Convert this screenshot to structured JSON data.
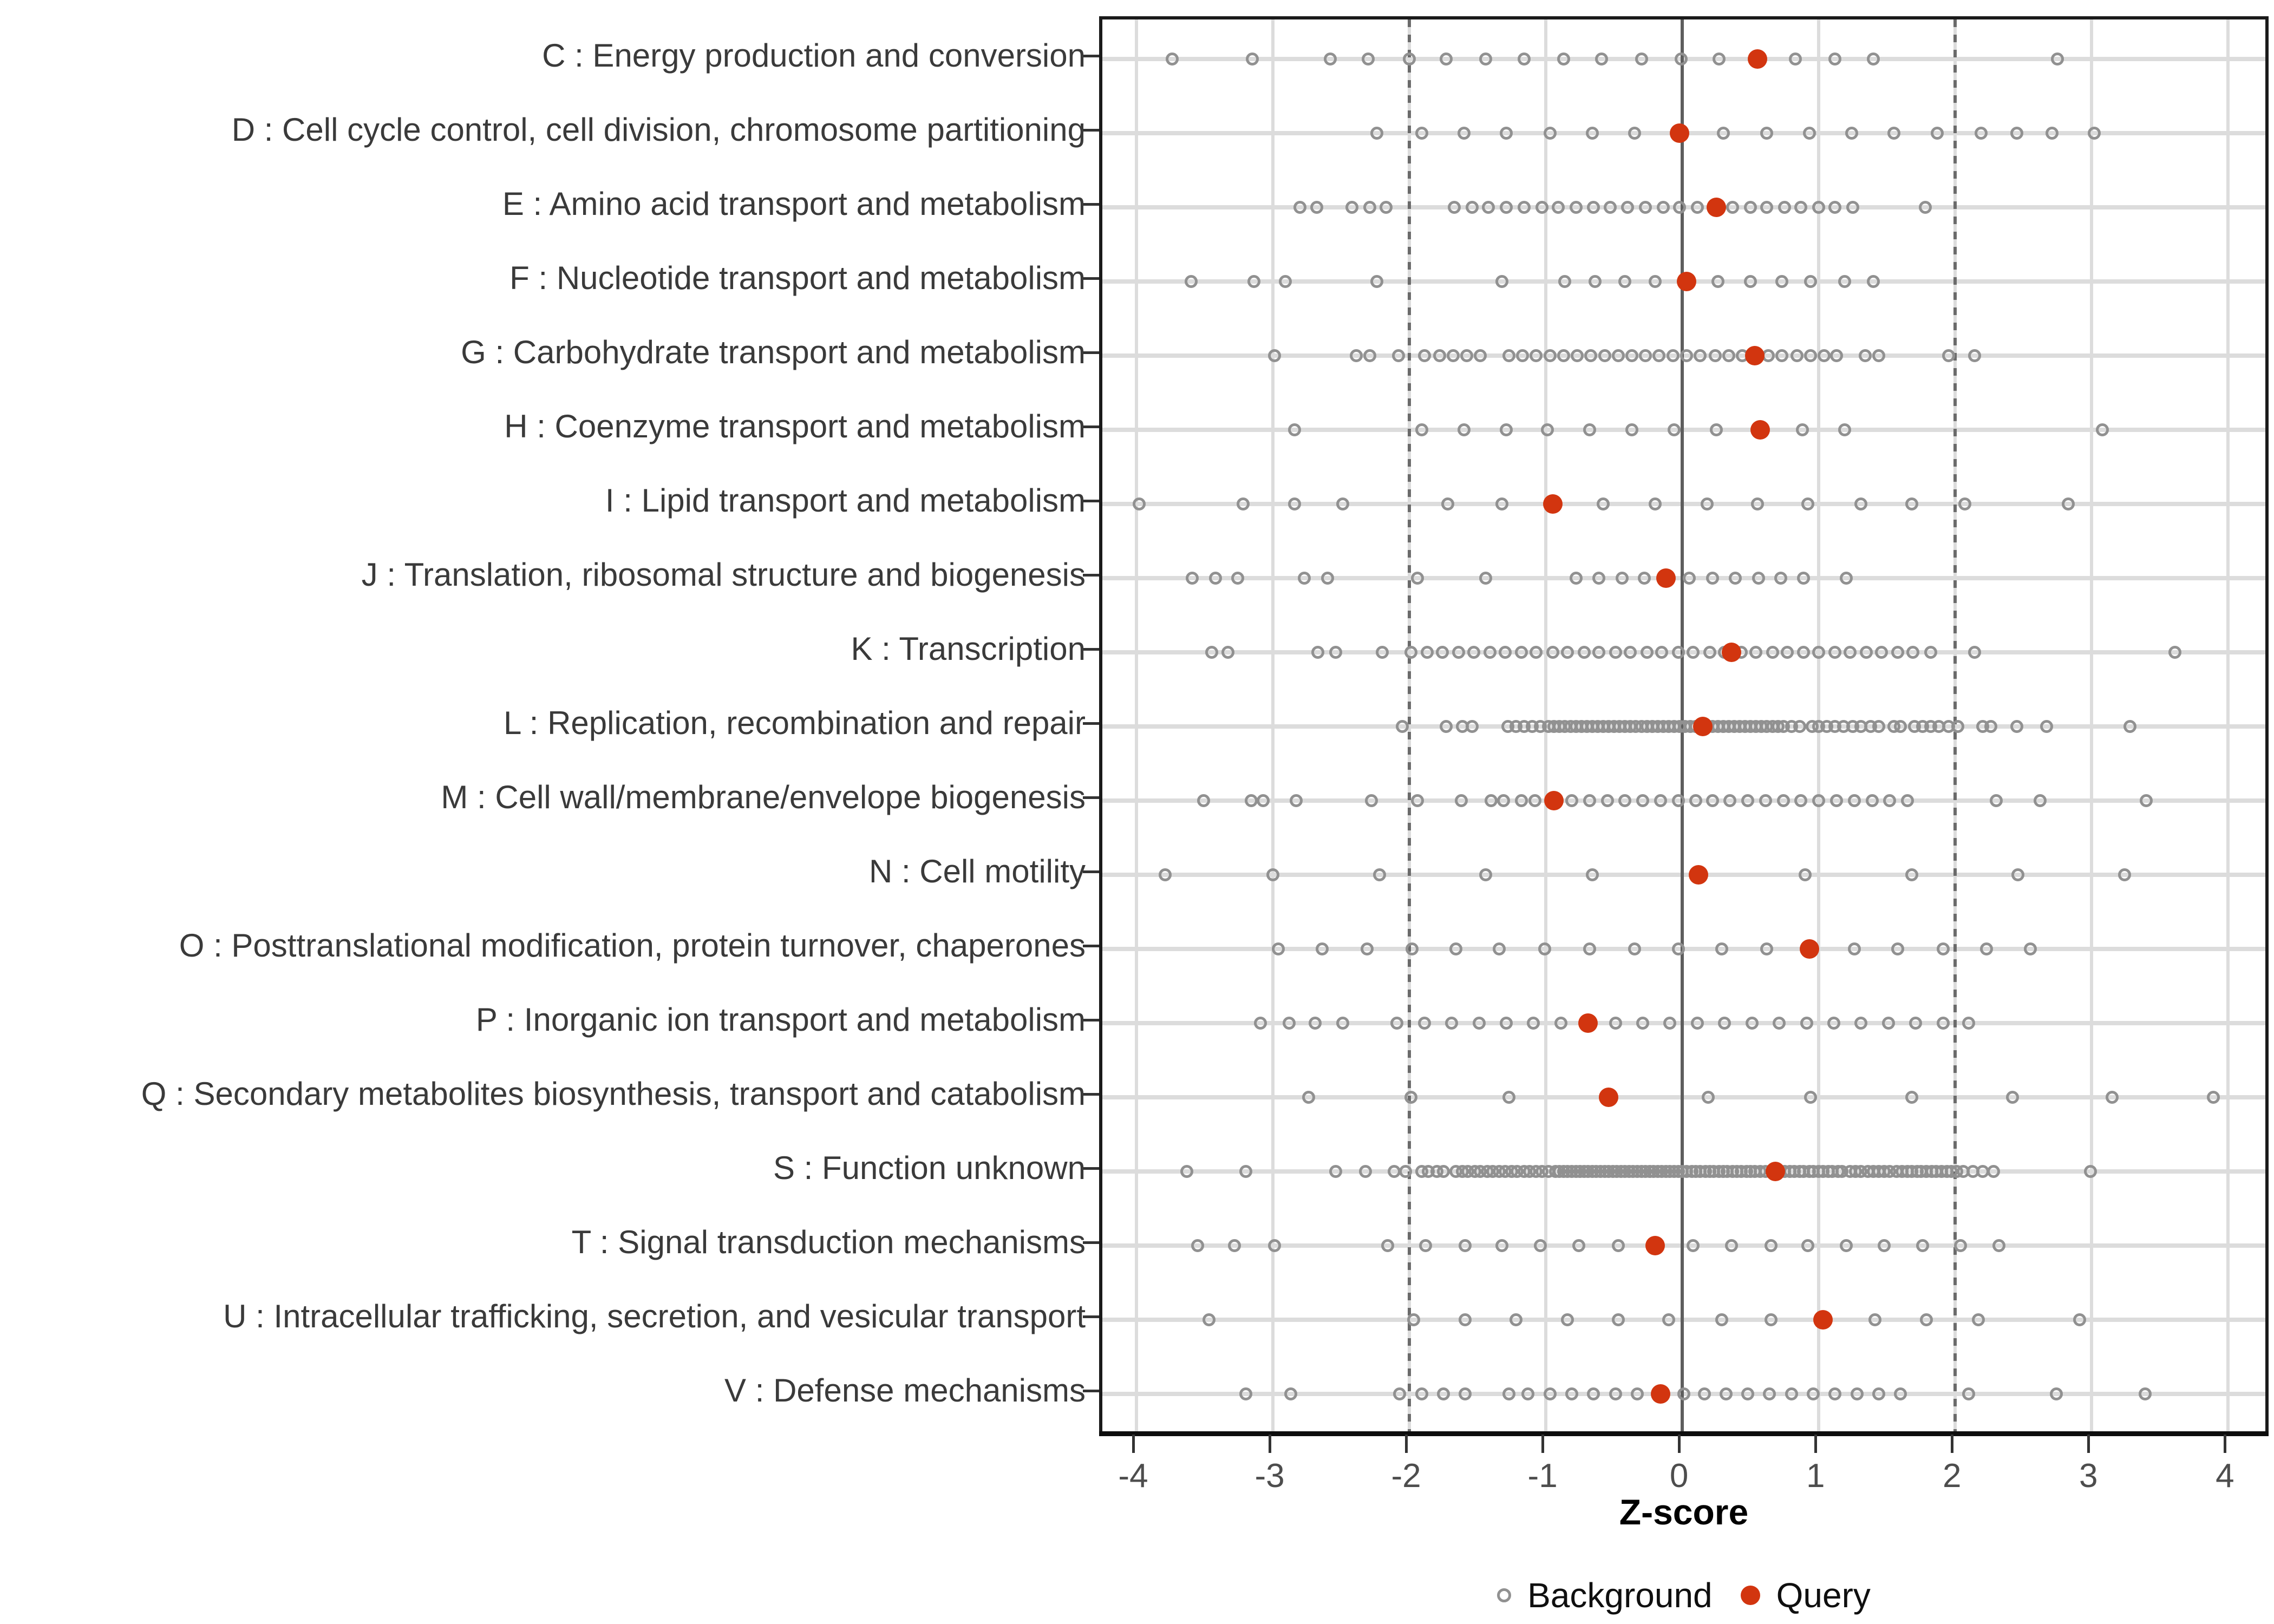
{
  "chart_data": {
    "type": "scatter",
    "title": "",
    "xlabel": "Z-score",
    "ylabel": "",
    "xlim": [
      -4.25,
      4.32
    ],
    "x_ticks": [
      "-4",
      "-3",
      "-2",
      "-1",
      "0",
      "1",
      "2",
      "3",
      "4"
    ],
    "x_tick_values": [
      -4,
      -3,
      -2,
      -1,
      0,
      1,
      2,
      3,
      4
    ],
    "reference_lines": {
      "solid_at": 0,
      "dashed_at": [
        -2,
        2
      ]
    },
    "grid": "vertical major lines on, horizontal row bands on",
    "legend_position": "bottom",
    "legend": {
      "background": "Background",
      "query": "Query"
    },
    "colors": {
      "query_fill": "#d2350f",
      "background_stroke": "#919191",
      "grid_line": "#dcdcdc",
      "zero_line": "#5e5e5e",
      "dashed_line": "#6b6b6b",
      "panel_border": "#1a1a1a",
      "axis_text": "#4d4d4d",
      "category_text": "#3a3a3a"
    },
    "series": [
      {
        "name": "Background",
        "marker": "open-circle"
      },
      {
        "name": "Query",
        "marker": "filled-circle"
      }
    ],
    "categories": [
      {
        "id": "C",
        "label": "C : Energy production and conversion",
        "query": 0.55,
        "background": [
          -3.74,
          -3.15,
          -2.58,
          -2.3,
          -2.0,
          -1.73,
          -1.44,
          -1.16,
          -0.87,
          -0.59,
          -0.3,
          -0.01,
          0.27,
          0.83,
          1.12,
          1.4,
          2.75
        ]
      },
      {
        "id": "D",
        "label": "D : Cell cycle control, cell division, chromosome partitioning",
        "query": -0.02,
        "background": [
          -2.24,
          -1.91,
          -1.6,
          -1.29,
          -0.97,
          -0.66,
          -0.35,
          0.3,
          0.62,
          0.93,
          1.24,
          1.55,
          1.87,
          2.19,
          2.45,
          2.71,
          3.02
        ]
      },
      {
        "id": "E",
        "label": "E : Amino acid transport and metabolism",
        "query": 0.25,
        "background": [
          -2.8,
          -2.68,
          -2.42,
          -2.29,
          -2.17,
          -1.67,
          -1.54,
          -1.42,
          -1.29,
          -1.16,
          -1.03,
          -0.91,
          -0.78,
          -0.65,
          -0.53,
          -0.4,
          -0.27,
          -0.14,
          -0.02,
          0.11,
          0.37,
          0.5,
          0.62,
          0.75,
          0.87,
          1.0,
          1.12,
          1.25,
          1.78
        ]
      },
      {
        "id": "F",
        "label": "F : Nucleotide transport and metabolism",
        "query": 0.03,
        "background": [
          -3.6,
          -3.14,
          -2.91,
          -2.24,
          -1.32,
          -0.86,
          -0.64,
          -0.42,
          -0.2,
          0.26,
          0.5,
          0.73,
          0.94,
          1.19,
          1.4
        ]
      },
      {
        "id": "G",
        "label": "G : Carbohydrate transport and metabolism",
        "query": 0.53,
        "background": [
          -2.99,
          -2.39,
          -2.29,
          -2.08,
          -1.89,
          -1.78,
          -1.68,
          -1.58,
          -1.48,
          -1.27,
          -1.17,
          -1.07,
          -0.97,
          -0.87,
          -0.77,
          -0.67,
          -0.57,
          -0.47,
          -0.37,
          -0.27,
          -0.17,
          -0.07,
          0.03,
          0.13,
          0.24,
          0.34,
          0.44,
          0.63,
          0.73,
          0.84,
          0.94,
          1.04,
          1.13,
          1.34,
          1.44,
          1.95,
          2.14
        ]
      },
      {
        "id": "H",
        "label": "H : Coenzyme transport and metabolism",
        "query": 0.57,
        "background": [
          -2.84,
          -1.91,
          -1.6,
          -1.29,
          -0.99,
          -0.68,
          -0.37,
          -0.06,
          0.25,
          0.88,
          1.19,
          3.08
        ]
      },
      {
        "id": "I",
        "label": "I : Lipid transport and metabolism",
        "query": -0.95,
        "background": [
          -3.98,
          -3.22,
          -2.84,
          -2.49,
          -1.72,
          -1.32,
          -0.58,
          -0.2,
          0.18,
          0.55,
          0.92,
          1.31,
          1.68,
          2.07,
          2.83
        ]
      },
      {
        "id": "J",
        "label": "J : Translation, ribosomal structure and biogenesis",
        "query": -0.12,
        "background": [
          -3.59,
          -3.42,
          -3.26,
          -2.77,
          -2.6,
          -1.94,
          -1.44,
          -0.78,
          -0.61,
          -0.44,
          -0.28,
          0.05,
          0.22,
          0.39,
          0.56,
          0.72,
          0.89,
          1.2
        ]
      },
      {
        "id": "K",
        "label": "K : Transcription",
        "query": 0.36,
        "background": [
          -3.45,
          -3.33,
          -2.67,
          -2.54,
          -2.2,
          -1.99,
          -1.87,
          -1.76,
          -1.64,
          -1.53,
          -1.41,
          -1.3,
          -1.18,
          -1.07,
          -0.95,
          -0.84,
          -0.72,
          -0.61,
          -0.49,
          -0.38,
          -0.26,
          -0.15,
          -0.03,
          0.08,
          0.2,
          0.31,
          0.43,
          0.54,
          0.66,
          0.77,
          0.89,
          1.0,
          1.12,
          1.23,
          1.35,
          1.46,
          1.58,
          1.69,
          1.82,
          2.14,
          3.61
        ]
      },
      {
        "id": "L",
        "label": "L : Replication, recombination and repair",
        "query": 0.15,
        "background": [
          -2.05,
          -1.73,
          -1.61,
          -1.54,
          -1.28,
          -1.22,
          -1.16,
          -1.1,
          -1.04,
          -0.98,
          -0.94,
          -0.9,
          -0.86,
          -0.82,
          -0.78,
          -0.74,
          -0.7,
          -0.66,
          -0.62,
          -0.58,
          -0.54,
          -0.5,
          -0.46,
          -0.42,
          -0.38,
          -0.34,
          -0.3,
          -0.26,
          -0.22,
          -0.18,
          -0.14,
          -0.1,
          -0.06,
          -0.02,
          0.02,
          0.06,
          0.1,
          0.14,
          0.18,
          0.22,
          0.26,
          0.3,
          0.34,
          0.38,
          0.42,
          0.46,
          0.5,
          0.54,
          0.58,
          0.62,
          0.66,
          0.7,
          0.74,
          0.8,
          0.86,
          0.95,
          1.0,
          1.06,
          1.12,
          1.18,
          1.25,
          1.31,
          1.38,
          1.44,
          1.55,
          1.6,
          1.7,
          1.76,
          1.82,
          1.88,
          1.95,
          2.02,
          2.2,
          2.26,
          2.45,
          2.67,
          3.28
        ]
      },
      {
        "id": "M",
        "label": "M : Cell wall/membrane/envelope biogenesis",
        "query": -0.94,
        "background": [
          -3.51,
          -3.16,
          -3.07,
          -2.83,
          -2.28,
          -1.94,
          -1.62,
          -1.4,
          -1.31,
          -1.18,
          -1.08,
          -0.81,
          -0.68,
          -0.55,
          -0.42,
          -0.29,
          -0.16,
          -0.03,
          0.1,
          0.22,
          0.35,
          0.48,
          0.61,
          0.74,
          0.87,
          1.0,
          1.13,
          1.26,
          1.39,
          1.52,
          1.65,
          2.3,
          2.62,
          3.4
        ]
      },
      {
        "id": "N",
        "label": "N : Cell motility",
        "query": 0.12,
        "background": [
          -3.79,
          -3.0,
          -2.22,
          -1.44,
          -0.66,
          0.9,
          1.68,
          2.46,
          3.24
        ]
      },
      {
        "id": "O",
        "label": "O : Posttranslational modification, protein turnover, chaperones",
        "query": 0.93,
        "background": [
          -2.96,
          -2.64,
          -2.31,
          -1.98,
          -1.66,
          -1.34,
          -1.01,
          -0.68,
          -0.35,
          -0.03,
          0.29,
          0.62,
          1.26,
          1.58,
          1.91,
          2.23,
          2.55
        ]
      },
      {
        "id": "P",
        "label": "P : Inorganic ion transport and metabolism",
        "query": -0.69,
        "background": [
          -3.09,
          -2.88,
          -2.69,
          -2.49,
          -2.09,
          -1.89,
          -1.69,
          -1.49,
          -1.29,
          -1.09,
          -0.89,
          -0.49,
          -0.29,
          -0.09,
          0.11,
          0.31,
          0.51,
          0.71,
          0.91,
          1.11,
          1.31,
          1.51,
          1.71,
          1.91,
          2.1
        ]
      },
      {
        "id": "Q",
        "label": "Q : Secondary metabolites biosynthesis, transport and catabolism",
        "query": -0.54,
        "background": [
          -2.74,
          -1.99,
          -1.27,
          0.19,
          0.94,
          1.68,
          2.42,
          3.15,
          3.89
        ]
      },
      {
        "id": "S",
        "label": "S : Function unknown",
        "query": 0.68,
        "background": [
          -3.63,
          -3.2,
          -2.54,
          -2.32,
          -2.11,
          -2.03,
          -1.91,
          -1.86,
          -1.8,
          -1.75,
          -1.66,
          -1.61,
          -1.57,
          -1.52,
          -1.48,
          -1.43,
          -1.39,
          -1.34,
          -1.3,
          -1.25,
          -1.21,
          -1.16,
          -1.12,
          -1.07,
          -1.03,
          -0.98,
          -0.93,
          -0.9,
          -0.87,
          -0.84,
          -0.81,
          -0.78,
          -0.75,
          -0.72,
          -0.69,
          -0.66,
          -0.63,
          -0.6,
          -0.57,
          -0.54,
          -0.51,
          -0.48,
          -0.45,
          -0.42,
          -0.39,
          -0.36,
          -0.33,
          -0.3,
          -0.27,
          -0.24,
          -0.21,
          -0.18,
          -0.15,
          -0.12,
          -0.09,
          -0.06,
          -0.03,
          0.0,
          0.03,
          0.07,
          0.1,
          0.13,
          0.17,
          0.2,
          0.23,
          0.27,
          0.3,
          0.33,
          0.37,
          0.4,
          0.43,
          0.47,
          0.5,
          0.53,
          0.57,
          0.61,
          0.75,
          0.79,
          0.82,
          0.86,
          0.89,
          0.93,
          0.96,
          1.0,
          1.03,
          1.07,
          1.1,
          1.14,
          1.17,
          1.23,
          1.27,
          1.31,
          1.36,
          1.4,
          1.44,
          1.48,
          1.52,
          1.57,
          1.61,
          1.65,
          1.68,
          1.72,
          1.75,
          1.79,
          1.83,
          1.86,
          1.9,
          1.94,
          1.97,
          2.01,
          2.06,
          2.13,
          2.2,
          2.28,
          2.99
        ]
      },
      {
        "id": "T",
        "label": "T : Signal transduction mechanisms",
        "query": -0.2,
        "background": [
          -3.55,
          -3.28,
          -2.99,
          -2.16,
          -1.88,
          -1.59,
          -1.32,
          -1.04,
          -0.76,
          -0.47,
          0.08,
          0.36,
          0.65,
          0.92,
          1.2,
          1.48,
          1.76,
          2.04,
          2.32
        ]
      },
      {
        "id": "U",
        "label": "U : Intracellular trafficking, secretion, and vesicular transport",
        "query": 1.03,
        "background": [
          -3.47,
          -1.97,
          -1.59,
          -1.22,
          -0.84,
          -0.47,
          -0.1,
          0.29,
          0.65,
          1.41,
          1.79,
          2.17,
          2.91
        ]
      },
      {
        "id": "V",
        "label": "V : Defense mechanisms",
        "query": -0.16,
        "background": [
          -3.2,
          -2.87,
          -2.07,
          -1.91,
          -1.75,
          -1.59,
          -1.27,
          -1.13,
          -0.97,
          -0.81,
          -0.65,
          -0.49,
          -0.33,
          0.01,
          0.16,
          0.32,
          0.48,
          0.64,
          0.8,
          0.96,
          1.12,
          1.28,
          1.44,
          1.6,
          2.1,
          2.74,
          3.39
        ]
      }
    ]
  }
}
